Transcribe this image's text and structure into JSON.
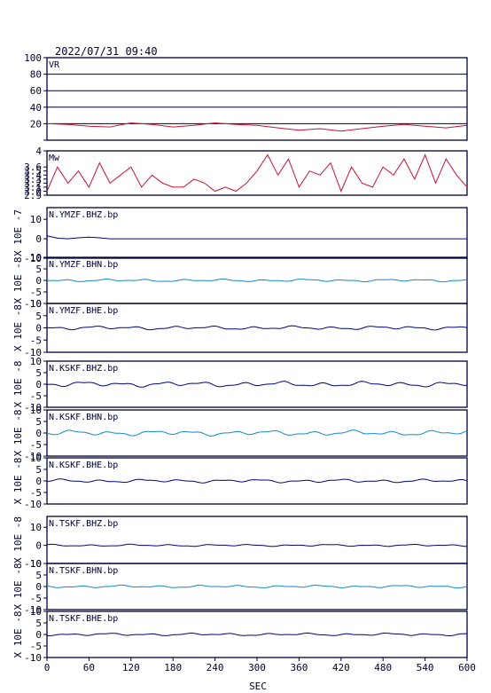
{
  "header": {
    "timestamp": "2022/07/31 09:40"
  },
  "xaxis": {
    "label": "SEC",
    "range": [
      0,
      600
    ],
    "ticks": [
      0,
      60,
      120,
      180,
      240,
      300,
      360,
      420,
      480,
      540,
      600
    ],
    "tick_labels": [
      "0",
      "60",
      "120",
      "180",
      "240",
      "300",
      "360",
      "420",
      "480",
      "540",
      "600"
    ]
  },
  "colors": {
    "frame": "#000033",
    "vr": "#cc1133",
    "mw": "#cc1133",
    "dark_trace": "#000088",
    "light_trace": "#1188cc"
  },
  "chart_data": [
    {
      "type": "line",
      "title": "VR",
      "ylim": [
        0,
        100
      ],
      "yticks": [
        0,
        20,
        40,
        60,
        80,
        100
      ],
      "ytick_labels": [
        "",
        "20",
        "40",
        "60",
        "80",
        "100"
      ],
      "grid": true,
      "ylabel": "",
      "color": "#cc1133",
      "x": [
        0,
        30,
        60,
        90,
        120,
        150,
        180,
        210,
        240,
        270,
        300,
        330,
        360,
        390,
        420,
        450,
        480,
        510,
        540,
        570,
        600
      ],
      "y": [
        20,
        19,
        17,
        16,
        21,
        19,
        16,
        18,
        21,
        19,
        18,
        15,
        12,
        14,
        11,
        14,
        17,
        19,
        17,
        15,
        18
      ]
    },
    {
      "type": "line",
      "title": "Mw",
      "ylim": [
        2.9,
        4.0
      ],
      "yticks": [
        2.9,
        3.0,
        3.1,
        3.2,
        3.3,
        3.4,
        3.5,
        3.6,
        4.0
      ],
      "ytick_labels": [
        "2.9",
        "3.0",
        "3.1",
        "3.2",
        "3.3",
        "3.4",
        "3.5",
        "3.6",
        "4"
      ],
      "grid": false,
      "ylabel": "",
      "color": "#cc1133",
      "x": [
        0,
        15,
        30,
        45,
        60,
        75,
        90,
        105,
        120,
        135,
        150,
        165,
        180,
        195,
        210,
        225,
        240,
        255,
        270,
        285,
        300,
        315,
        330,
        345,
        360,
        375,
        390,
        405,
        420,
        435,
        450,
        465,
        480,
        495,
        510,
        525,
        540,
        555,
        570,
        585,
        600
      ],
      "y": [
        3.0,
        3.6,
        3.2,
        3.5,
        3.1,
        3.7,
        3.2,
        3.4,
        3.6,
        3.1,
        3.4,
        3.2,
        3.1,
        3.1,
        3.3,
        3.2,
        3.0,
        3.1,
        3.0,
        3.2,
        3.5,
        3.9,
        3.4,
        3.8,
        3.1,
        3.5,
        3.4,
        3.7,
        3.0,
        3.6,
        3.2,
        3.1,
        3.6,
        3.4,
        3.8,
        3.3,
        3.9,
        3.2,
        3.8,
        3.4,
        3.1
      ]
    },
    {
      "type": "line",
      "title": "N.YMZF.BHZ.bp",
      "ylabel": "X 10E -7",
      "ylim": [
        -10,
        16
      ],
      "yticks": [
        -10,
        0,
        10
      ],
      "ytick_labels": [
        "-10",
        "0",
        "10"
      ],
      "color": "#000088",
      "x": [
        0,
        15,
        30,
        45,
        60,
        75,
        90,
        600
      ],
      "y": [
        1.5,
        0.3,
        0,
        0.5,
        0.8,
        0.5,
        0,
        0
      ]
    },
    {
      "type": "line",
      "title": "N.YMZF.BHN.bp",
      "ylabel": "X 10E -8",
      "ylim": [
        -10,
        10
      ],
      "yticks": [
        -10,
        -5,
        0,
        5,
        10
      ],
      "ytick_labels": [
        "-10",
        "-5",
        "0",
        "5",
        "10"
      ],
      "color": "#1188cc",
      "amplitude": 0.6
    },
    {
      "type": "line",
      "title": "N.YMZF.BHE.bp",
      "ylabel": "X 10E -8",
      "ylim": [
        -10,
        10
      ],
      "yticks": [
        -10,
        -5,
        0,
        5,
        10
      ],
      "ytick_labels": [
        "-10",
        "-5",
        "0",
        "5",
        "10"
      ],
      "color": "#000088",
      "amplitude": 0.8
    },
    {
      "type": "line",
      "title": "N.KSKF.BHZ.bp",
      "ylabel": "X 10E -8",
      "ylim": [
        -10,
        10
      ],
      "yticks": [
        -10,
        -5,
        0,
        5,
        10
      ],
      "ytick_labels": [
        "-10",
        "-5",
        "0",
        "5",
        "10"
      ],
      "color": "#000088",
      "amplitude": 1.2
    },
    {
      "type": "line",
      "title": "N.KSKF.BHN.bp",
      "ylabel": "X 10E -8",
      "ylim": [
        -10,
        10
      ],
      "yticks": [
        -10,
        -5,
        0,
        5,
        10
      ],
      "ytick_labels": [
        "-10",
        "-5",
        "0",
        "5",
        "10"
      ],
      "color": "#1188cc",
      "amplitude": 1.2
    },
    {
      "type": "line",
      "title": "N.KSKF.BHE.bp",
      "ylabel": "X 10E -8",
      "ylim": [
        -10,
        10
      ],
      "yticks": [
        -10,
        -5,
        0,
        5,
        10
      ],
      "ytick_labels": [
        "-10",
        "-5",
        "0",
        "5",
        "10"
      ],
      "color": "#000088",
      "amplitude": 0.8
    },
    {
      "type": "line",
      "title": "N.TSKF.BHZ.bp",
      "ylabel": "X 10E -8",
      "ylim": [
        -10,
        16
      ],
      "yticks": [
        -10,
        0,
        10
      ],
      "ytick_labels": [
        "-10",
        "0",
        "10"
      ],
      "color": "#000088",
      "amplitude": 0.6
    },
    {
      "type": "line",
      "title": "N.TSKF.BHN.bp",
      "ylabel": "X 10E -8",
      "ylim": [
        -10,
        10
      ],
      "yticks": [
        -10,
        -5,
        0,
        5,
        10
      ],
      "ytick_labels": [
        "-10",
        "-5",
        "0",
        "5",
        "10"
      ],
      "color": "#1188cc",
      "amplitude": 0.6
    },
    {
      "type": "line",
      "title": "N.TSKF.BHE.bp",
      "ylabel": "X 10E -8",
      "ylim": [
        -10,
        10
      ],
      "yticks": [
        -10,
        -5,
        0,
        5,
        10
      ],
      "ytick_labels": [
        "-10",
        "-5",
        "0",
        "5",
        "10"
      ],
      "color": "#000088",
      "amplitude": 0.6
    }
  ]
}
